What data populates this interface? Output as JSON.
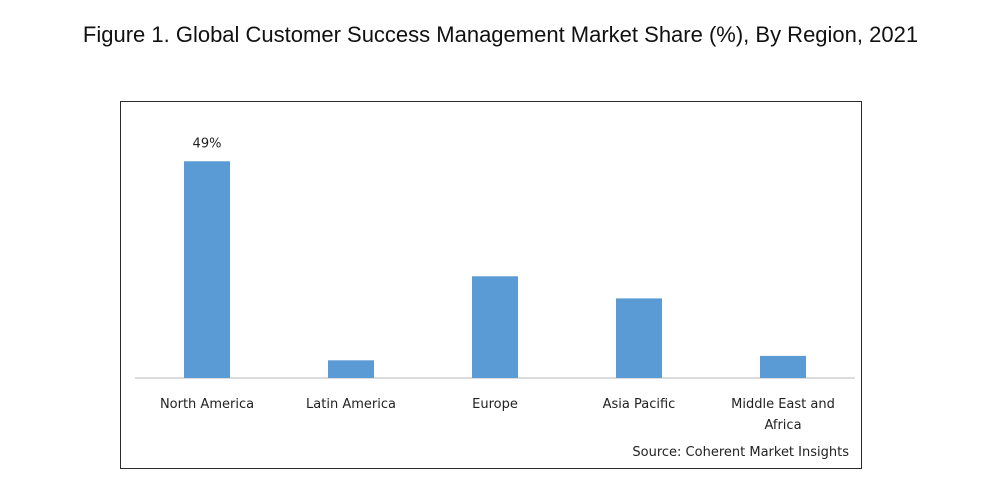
{
  "figure": {
    "title": "Figure 1. Global Customer Success Management Market Share (%), By Region, 2021",
    "source": "Source: Coherent Market Insights"
  },
  "colors": {
    "bar": "#5b9bd5",
    "axis": "#d0d0d0",
    "text": "#222222"
  },
  "chart_data": {
    "type": "bar",
    "title": "",
    "xlabel": "",
    "ylabel": "",
    "categories": [
      "North America",
      "Latin America",
      "Europe",
      "Asia Pacific",
      "Middle East and Africa"
    ],
    "category_lines": [
      [
        "North America"
      ],
      [
        "Latin America"
      ],
      [
        "Europe"
      ],
      [
        "Asia Pacific"
      ],
      [
        "Middle East and",
        "Africa"
      ]
    ],
    "values": [
      49,
      4,
      23,
      18,
      5
    ],
    "data_labels": [
      "49%",
      "",
      "",
      "",
      ""
    ],
    "ylim": [
      0,
      52
    ],
    "grid": false,
    "legend": "none"
  }
}
